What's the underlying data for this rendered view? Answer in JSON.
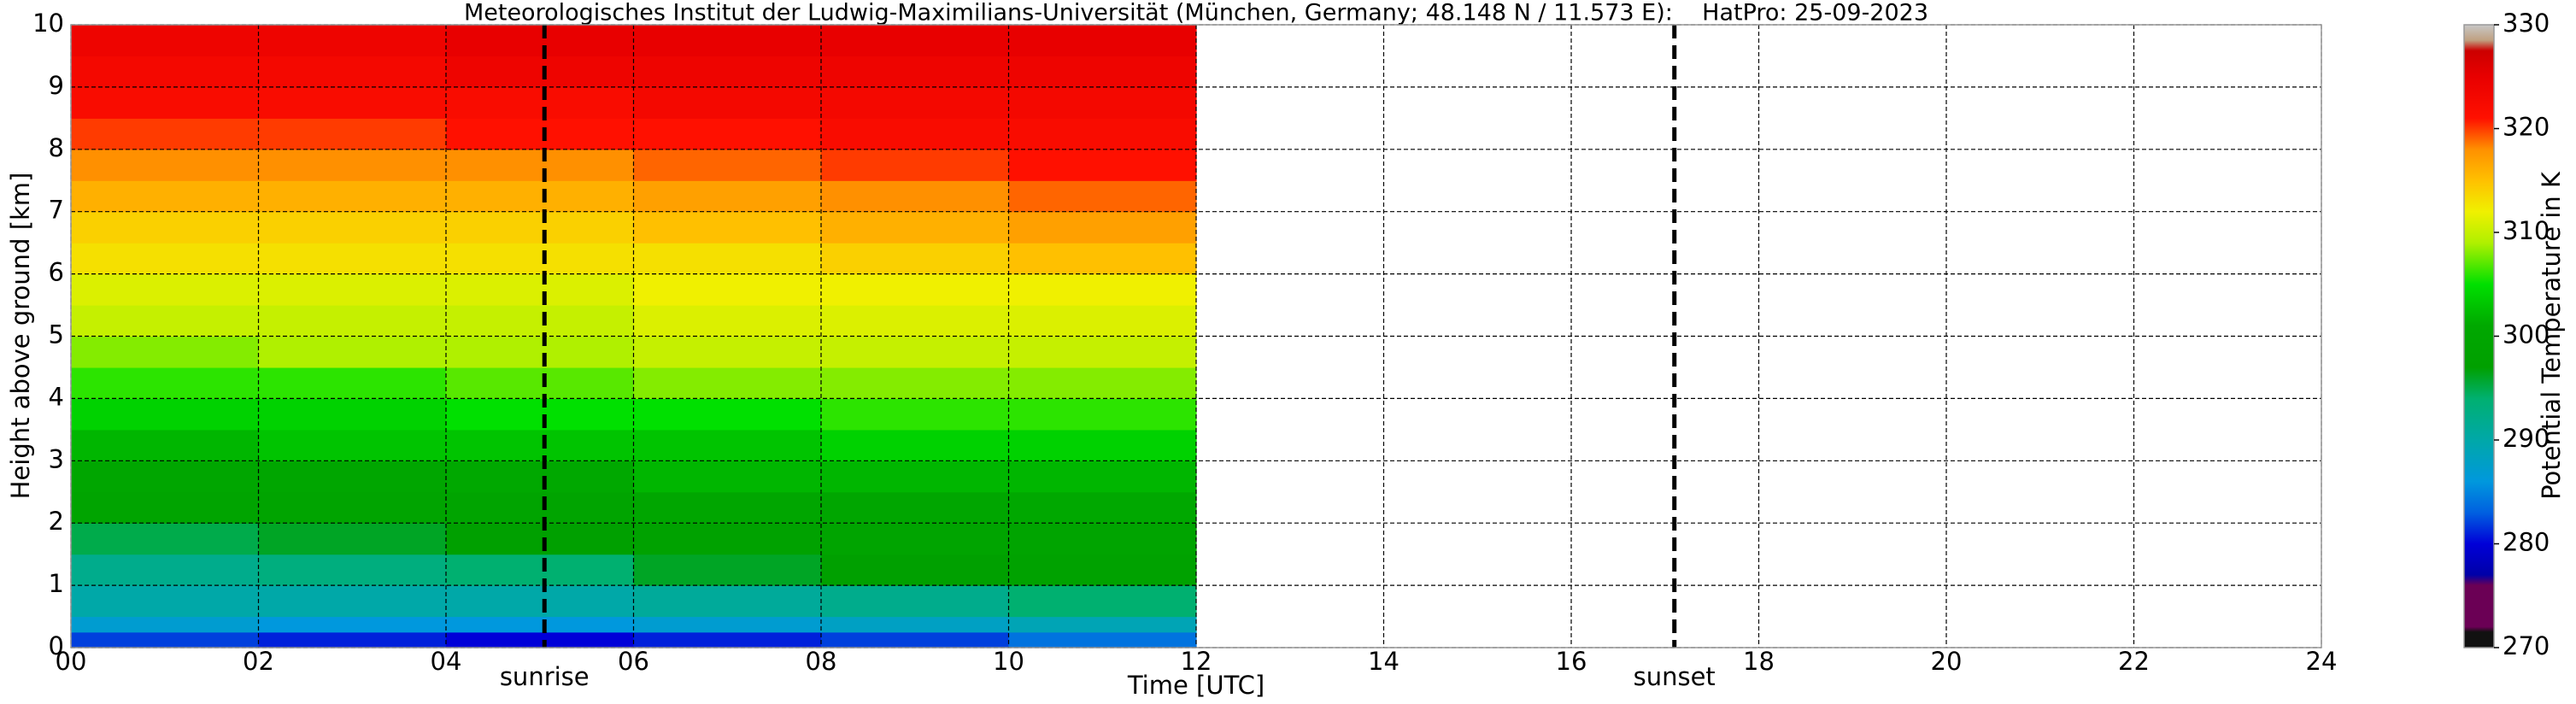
{
  "chart_data": {
    "type": "heatmap",
    "title": "Meteorologisches Institut der Ludwig-Maximilians-Universität (München, Germany; 48.148 N / 11.573 E):    HatPro: 25-09-2023",
    "xlabel": "Time [UTC]",
    "ylabel": "Height above ground [km]",
    "colorbar_label": "Potential Temperature in K",
    "xlim": [
      0,
      24
    ],
    "xticks": [
      {
        "value": 0,
        "label": "00"
      },
      {
        "value": 2,
        "label": "02"
      },
      {
        "value": 4,
        "label": "04"
      },
      {
        "value": 6,
        "label": "06"
      },
      {
        "value": 8,
        "label": "08"
      },
      10,
      12,
      14,
      16,
      18,
      20,
      22,
      24
    ],
    "ylim": [
      0,
      10
    ],
    "yticks": [
      0,
      1,
      2,
      3,
      4,
      5,
      6,
      7,
      8,
      9,
      10
    ],
    "clim": [
      270,
      330
    ],
    "cticks": [
      270,
      280,
      290,
      300,
      310,
      320,
      330
    ],
    "grid": true,
    "colormap": [
      [
        270,
        "#111111"
      ],
      [
        271.5,
        "#111111"
      ],
      [
        272,
        "#6b0055"
      ],
      [
        276,
        "#6b0055"
      ],
      [
        277,
        "#0000a8"
      ],
      [
        280,
        "#0000d8"
      ],
      [
        283,
        "#0060e0"
      ],
      [
        286,
        "#0098dd"
      ],
      [
        290,
        "#00a8a8"
      ],
      [
        294,
        "#00b070"
      ],
      [
        297,
        "#00a000"
      ],
      [
        301,
        "#00a800"
      ],
      [
        305,
        "#00e000"
      ],
      [
        309,
        "#b0f000"
      ],
      [
        312,
        "#f0f000"
      ],
      [
        315,
        "#ffc000"
      ],
      [
        318,
        "#ff9000"
      ],
      [
        321,
        "#ff1000"
      ],
      [
        325,
        "#e80000"
      ],
      [
        327.5,
        "#cc0000"
      ],
      [
        328.5,
        "#c0a080"
      ],
      [
        330,
        "#c8c8c8"
      ]
    ],
    "x_edges": [
      0,
      2,
      4,
      6,
      8,
      10,
      12
    ],
    "y_edges": [
      0,
      0.25,
      0.5,
      1,
      1.5,
      2,
      2.5,
      3,
      3.5,
      4,
      4.5,
      5,
      5.5,
      6,
      6.5,
      7,
      7.5,
      8,
      8.5,
      9,
      9.5,
      10
    ],
    "z": [
      [
        282,
        281,
        280,
        281,
        282,
        284
      ],
      [
        287,
        286,
        286,
        287,
        288,
        289
      ],
      [
        290,
        290,
        290,
        291,
        292,
        294
      ],
      [
        292,
        293,
        294,
        296,
        297,
        298
      ],
      [
        295,
        296,
        297,
        298,
        299,
        299
      ],
      [
        299,
        299,
        299,
        300,
        300,
        301
      ],
      [
        300,
        300,
        301,
        302,
        302,
        302
      ],
      [
        302,
        303,
        303,
        303,
        304,
        304
      ],
      [
        304,
        304,
        305,
        305,
        306,
        306
      ],
      [
        306,
        306,
        307,
        308,
        308,
        308
      ],
      [
        308,
        309,
        309,
        310,
        310,
        310
      ],
      [
        310,
        310,
        310,
        311,
        311,
        311
      ],
      [
        311,
        311,
        311,
        312,
        312,
        312
      ],
      [
        313,
        313,
        313,
        313,
        314,
        315
      ],
      [
        314,
        314,
        314,
        315,
        316,
        317
      ],
      [
        316,
        316,
        316,
        317,
        318,
        319
      ],
      [
        318,
        318,
        318,
        319,
        320,
        321
      ],
      [
        320,
        320,
        321,
        321,
        322,
        322
      ],
      [
        322,
        322,
        322,
        323,
        323,
        323
      ],
      [
        323,
        323,
        324,
        324,
        324,
        324
      ],
      [
        324,
        324,
        325,
        325,
        325,
        325
      ]
    ],
    "vlines": [
      {
        "x": 5.05,
        "label": "sunrise"
      },
      {
        "x": 17.1,
        "label": "sunset"
      }
    ]
  }
}
